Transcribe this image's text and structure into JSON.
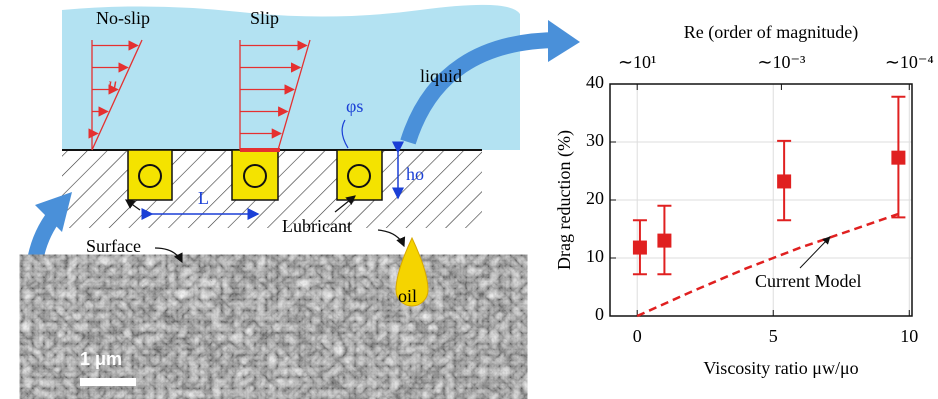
{
  "chart_data": {
    "type": "scatter",
    "x_label": "Viscosity ratio μw/μo",
    "y_label": "Drag reduction (%)",
    "x2_label": "Re (order of magnitude)",
    "xlim": [
      -1,
      10.1
    ],
    "ylim": [
      0,
      40
    ],
    "xticks": [
      0,
      5,
      10
    ],
    "yticks": [
      0,
      10,
      20,
      30,
      40
    ],
    "x2ticks": [
      {
        "value": 0,
        "label": "∼10¹"
      },
      {
        "value": 5.3,
        "label": "∼10⁻³"
      },
      {
        "value": 10,
        "label": "∼10⁻⁴"
      }
    ],
    "grid": true,
    "series": [
      {
        "color": "#e02020",
        "x": [
          0.1,
          1,
          5.4,
          9.6
        ],
        "values": [
          11.8,
          13,
          23.2,
          27.3
        ],
        "lower": [
          7.2,
          7.2,
          16.5,
          17
        ],
        "upper": [
          16.5,
          19,
          30.2,
          37.8
        ]
      },
      {
        "name": "Current Model",
        "type": "line",
        "color": "#e02020",
        "dashed": true,
        "x": [
          0,
          2,
          4,
          6,
          8,
          9.6
        ],
        "values": [
          0,
          4.2,
          8.2,
          11.8,
          15,
          17.6
        ]
      }
    ]
  },
  "diagram": {
    "no_slip": "No-slip",
    "slip": "Slip",
    "velocity": "u",
    "liquid": "liquid",
    "contact_angle": "φs",
    "length": "L",
    "height": "ho",
    "surface": "Surface",
    "lubricant": "Lubricant",
    "oil": "oil",
    "scale_bar": "1 μm"
  }
}
